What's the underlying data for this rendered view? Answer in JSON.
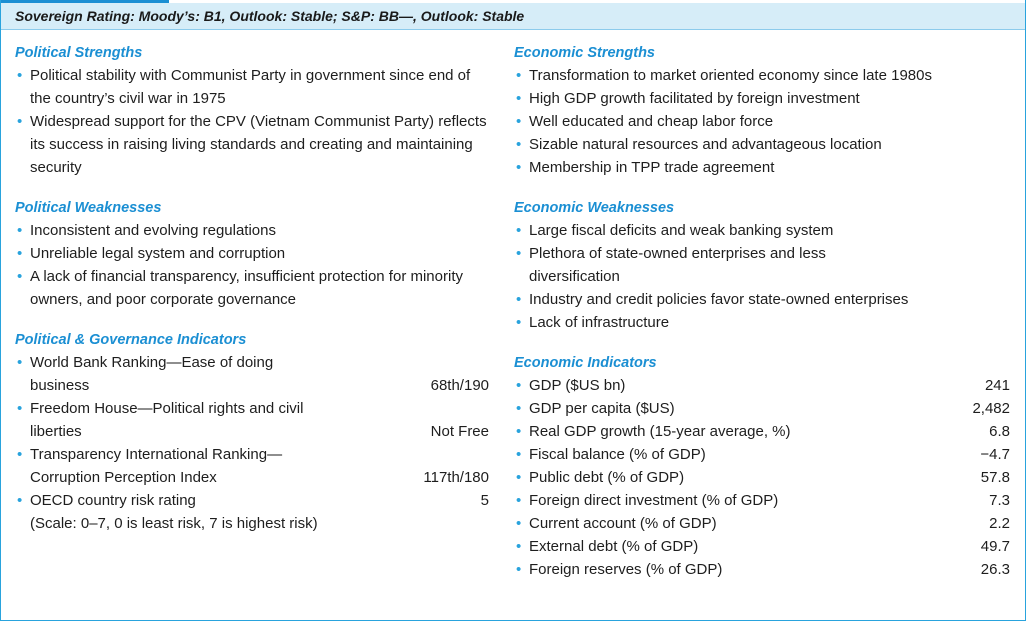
{
  "header": {
    "title": "Sovereign Rating: Moody’s: B1, Outlook: Stable; S&P: BB—, Outlook: Stable"
  },
  "political_strengths": {
    "title": "Political Strengths",
    "items": [
      "Political stability with Communist Party in government since end of the country’s civil war in 1975",
      "Widespread support for the CPV (Vietnam Communist Party) reflects its success in raising living standards and creating and maintaining security"
    ]
  },
  "political_weaknesses": {
    "title": "Political Weaknesses",
    "items": [
      "Inconsistent and evolving regulations",
      "Unreliable legal system and corruption",
      "A lack of financial transparency, insufficient protection for minority owners, and poor corporate governance"
    ]
  },
  "political_indicators": {
    "title": "Political & Governance Indicators",
    "items": [
      {
        "label": "World Bank Ranking—Ease of doing business",
        "value": "68th/190"
      },
      {
        "label": "Freedom House—Political rights and civil liberties",
        "value": "Not Free"
      },
      {
        "label": "Transparency International Ranking—Corruption Perception Index",
        "value": "117th/180"
      },
      {
        "label": "OECD country risk rating",
        "value": "5"
      }
    ],
    "note": "(Scale: 0–7, 0 is least risk, 7 is highest risk)"
  },
  "economic_strengths": {
    "title": "Economic Strengths",
    "items": [
      "Transformation to market oriented economy since late 1980s",
      "High GDP growth facilitated by foreign investment",
      "Well educated and cheap labor force",
      "Sizable natural resources and advantageous location",
      "Membership in TPP trade agreement"
    ]
  },
  "economic_weaknesses": {
    "title": "Economic Weaknesses",
    "items": [
      "Large fiscal deficits and weak banking system",
      "Plethora of state-owned enterprises and less diversification",
      "Industry and credit policies favor state-owned enterprises",
      "Lack of infrastructure"
    ]
  },
  "economic_indicators": {
    "title": "Economic Indicators",
    "items": [
      {
        "label": "GDP ($US bn)",
        "value": "241"
      },
      {
        "label": "GDP per capita ($US)",
        "value": "2,482"
      },
      {
        "label": "Real GDP growth (15-year average, %)",
        "value": "6.8"
      },
      {
        "label": "Fiscal balance (% of GDP)",
        "value": "−4.7"
      },
      {
        "label": "Public debt (% of GDP)",
        "value": "57.8"
      },
      {
        "label": "Foreign direct investment (% of GDP)",
        "value": "7.3"
      },
      {
        "label": "Current account (% of GDP)",
        "value": "2.2"
      },
      {
        "label": "External debt (% of GDP)",
        "value": "49.7"
      },
      {
        "label": "Foreign reserves (% of GDP)",
        "value": "26.3"
      }
    ]
  }
}
